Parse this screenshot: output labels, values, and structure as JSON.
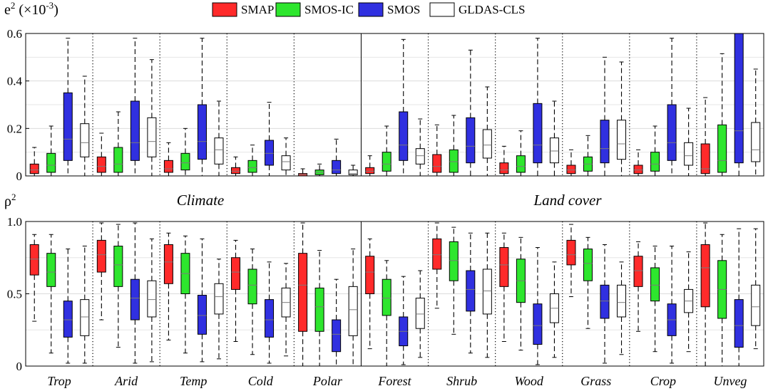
{
  "legend": [
    {
      "name": "SMAP",
      "color": "#ff2a2a"
    },
    {
      "name": "SMOS-IC",
      "color": "#2ee62e"
    },
    {
      "name": "SMOS",
      "color": "#3030e0"
    },
    {
      "name": "GLDAS-CLS",
      "color": "#ffffff"
    }
  ],
  "group_labels": {
    "climate": "Climate",
    "land_cover": "Land cover"
  },
  "chart_data": [
    {
      "type": "boxplot",
      "panel": "top",
      "ylabel_main": "e",
      "ylabel_sup": "2",
      "ylabel_unit": " (×10",
      "ylabel_unit_sup": "-3",
      "ylabel_close": ")",
      "ylim": [
        0,
        0.6
      ],
      "ticks": [
        0,
        0.2,
        0.4,
        0.6
      ],
      "tick_labels": [
        "0",
        "0.2",
        "0.4",
        "0.6"
      ],
      "categories": [
        "Trop",
        "Arid",
        "Temp",
        "Cold",
        "Polar",
        "Forest",
        "Shrub",
        "Wood",
        "Grass",
        "Crop",
        "Unveg"
      ],
      "series": [
        {
          "name": "SMAP",
          "boxes": [
            [
              0,
              0.01,
              0.025,
              0.05,
              0.12
            ],
            [
              0,
              0.015,
              0.04,
              0.08,
              0.18
            ],
            [
              0,
              0.015,
              0.03,
              0.065,
              0.14
            ],
            [
              0,
              0.01,
              0.02,
              0.035,
              0.08
            ],
            [
              0,
              0,
              0.005,
              0.01,
              0.03
            ],
            [
              0,
              0.01,
              0.02,
              0.035,
              0.085
            ],
            [
              0,
              0.015,
              0.04,
              0.09,
              0.215
            ],
            [
              0,
              0.01,
              0.025,
              0.055,
              0.125
            ],
            [
              0,
              0.01,
              0.025,
              0.045,
              0.11
            ],
            [
              0,
              0.01,
              0.025,
              0.045,
              0.11
            ],
            [
              0,
              0.01,
              0.03,
              0.135,
              0.33
            ]
          ]
        },
        {
          "name": "SMOS-IC",
          "boxes": [
            [
              0,
              0.015,
              0.045,
              0.095,
              0.21
            ],
            [
              0,
              0.015,
              0.05,
              0.12,
              0.27
            ],
            [
              0,
              0.025,
              0.055,
              0.095,
              0.2
            ],
            [
              0,
              0.015,
              0.035,
              0.065,
              0.13
            ],
            [
              0,
              0.005,
              0.015,
              0.025,
              0.05
            ],
            [
              0,
              0.02,
              0.05,
              0.1,
              0.21
            ],
            [
              0,
              0.015,
              0.06,
              0.11,
              0.255
            ],
            [
              0,
              0.015,
              0.04,
              0.085,
              0.19
            ],
            [
              0,
              0.02,
              0.05,
              0.08,
              0.17
            ],
            [
              0,
              0.02,
              0.05,
              0.1,
              0.21
            ],
            [
              0,
              0.015,
              0.065,
              0.215,
              0.515
            ]
          ]
        },
        {
          "name": "SMOS",
          "boxes": [
            [
              0,
              0.065,
              0.155,
              0.35,
              0.58
            ],
            [
              0,
              0.065,
              0.14,
              0.315,
              0.58
            ],
            [
              0,
              0.07,
              0.145,
              0.3,
              0.58
            ],
            [
              0,
              0.045,
              0.095,
              0.15,
              0.31
            ],
            [
              0,
              0.01,
              0.025,
              0.065,
              0.155
            ],
            [
              0,
              0.065,
              0.13,
              0.27,
              0.575
            ],
            [
              0,
              0.055,
              0.125,
              0.245,
              0.53
            ],
            [
              0,
              0.055,
              0.13,
              0.305,
              0.58
            ],
            [
              0,
              0.055,
              0.115,
              0.235,
              0.5
            ],
            [
              0,
              0.065,
              0.14,
              0.3,
              0.58
            ],
            [
              0,
              0.055,
              0.19,
              0.6,
              0.6
            ]
          ]
        },
        {
          "name": "GLDAS-CLS",
          "boxes": [
            [
              0,
              0.08,
              0.14,
              0.22,
              0.42
            ],
            [
              0,
              0.08,
              0.145,
              0.245,
              0.49
            ],
            [
              0,
              0.05,
              0.11,
              0.16,
              0.315
            ],
            [
              0,
              0.025,
              0.06,
              0.085,
              0.16
            ],
            [
              0,
              0.005,
              0.01,
              0.025,
              0.045
            ],
            [
              0,
              0.05,
              0.085,
              0.115,
              0.24
            ],
            [
              0,
              0.075,
              0.13,
              0.195,
              0.375
            ],
            [
              0,
              0.055,
              0.105,
              0.16,
              0.315
            ],
            [
              0,
              0.07,
              0.135,
              0.235,
              0.48
            ],
            [
              0,
              0.045,
              0.085,
              0.14,
              0.285
            ],
            [
              0,
              0.06,
              0.11,
              0.225,
              0.45
            ]
          ]
        }
      ]
    },
    {
      "type": "boxplot",
      "panel": "bottom",
      "ylabel_main": "ρ",
      "ylabel_sup": "2",
      "ylim": [
        0,
        1.0
      ],
      "ticks": [
        0,
        0.5,
        1.0
      ],
      "tick_labels": [
        "0",
        "0.5",
        "1.0"
      ],
      "categories": [
        "Trop",
        "Arid",
        "Temp",
        "Cold",
        "Polar",
        "Forest",
        "Shrub",
        "Wood",
        "Grass",
        "Crop",
        "Unveg"
      ],
      "series": [
        {
          "name": "SMAP",
          "boxes": [
            [
              0.31,
              0.63,
              0.74,
              0.84,
              0.91
            ],
            [
              0.32,
              0.65,
              0.77,
              0.87,
              0.99
            ],
            [
              0.18,
              0.57,
              0.72,
              0.84,
              0.92
            ],
            [
              0.17,
              0.53,
              0.65,
              0.75,
              0.87
            ],
            [
              0.0,
              0.24,
              0.56,
              0.78,
              0.99
            ],
            [
              0.12,
              0.5,
              0.65,
              0.76,
              0.88
            ],
            [
              0.4,
              0.67,
              0.77,
              0.88,
              0.99
            ],
            [
              0.17,
              0.55,
              0.7,
              0.82,
              0.92
            ],
            [
              0.48,
              0.7,
              0.77,
              0.87,
              0.98
            ],
            [
              0.24,
              0.55,
              0.66,
              0.76,
              0.86
            ],
            [
              0.0,
              0.41,
              0.68,
              0.84,
              0.99
            ]
          ]
        },
        {
          "name": "SMOS-IC",
          "boxes": [
            [
              0.09,
              0.55,
              0.65,
              0.78,
              0.91
            ],
            [
              0.13,
              0.55,
              0.7,
              0.83,
              0.98
            ],
            [
              0.09,
              0.5,
              0.64,
              0.78,
              0.9
            ],
            [
              0.08,
              0.43,
              0.56,
              0.67,
              0.81
            ],
            [
              0.0,
              0.24,
              0.41,
              0.54,
              0.8
            ],
            [
              0.0,
              0.35,
              0.47,
              0.6,
              0.73
            ],
            [
              0.22,
              0.59,
              0.73,
              0.86,
              0.96
            ],
            [
              0.11,
              0.44,
              0.59,
              0.74,
              0.89
            ],
            [
              0.26,
              0.59,
              0.71,
              0.81,
              0.89
            ],
            [
              0.1,
              0.45,
              0.56,
              0.68,
              0.83
            ],
            [
              0.0,
              0.33,
              0.53,
              0.73,
              0.91
            ]
          ]
        },
        {
          "name": "SMOS",
          "boxes": [
            [
              0.02,
              0.2,
              0.32,
              0.45,
              0.81
            ],
            [
              0.02,
              0.32,
              0.47,
              0.6,
              0.99
            ],
            [
              0.03,
              0.22,
              0.35,
              0.49,
              0.88
            ],
            [
              0.02,
              0.2,
              0.32,
              0.46,
              0.72
            ],
            [
              0.0,
              0.1,
              0.22,
              0.32,
              0.6
            ],
            [
              0.01,
              0.14,
              0.24,
              0.34,
              0.62
            ],
            [
              0.09,
              0.38,
              0.53,
              0.66,
              0.92
            ],
            [
              0.01,
              0.15,
              0.28,
              0.43,
              0.82
            ],
            [
              0.02,
              0.33,
              0.45,
              0.56,
              0.84
            ],
            [
              0.02,
              0.21,
              0.32,
              0.43,
              0.83
            ],
            [
              0.0,
              0.13,
              0.28,
              0.46,
              0.95
            ]
          ]
        },
        {
          "name": "GLDAS-CLS",
          "boxes": [
            [
              0.02,
              0.21,
              0.34,
              0.46,
              0.83
            ],
            [
              0.03,
              0.34,
              0.46,
              0.59,
              0.88
            ],
            [
              0.05,
              0.36,
              0.48,
              0.57,
              0.74
            ],
            [
              0.07,
              0.34,
              0.44,
              0.54,
              0.71
            ],
            [
              0.0,
              0.21,
              0.39,
              0.55,
              0.81
            ],
            [
              0.06,
              0.26,
              0.36,
              0.47,
              0.66
            ],
            [
              0.06,
              0.36,
              0.52,
              0.67,
              0.92
            ],
            [
              0.06,
              0.3,
              0.4,
              0.5,
              0.72
            ],
            [
              0.08,
              0.34,
              0.44,
              0.56,
              0.72
            ],
            [
              0.1,
              0.37,
              0.45,
              0.53,
              0.79
            ],
            [
              0.12,
              0.28,
              0.41,
              0.56,
              0.95
            ]
          ]
        }
      ]
    }
  ]
}
